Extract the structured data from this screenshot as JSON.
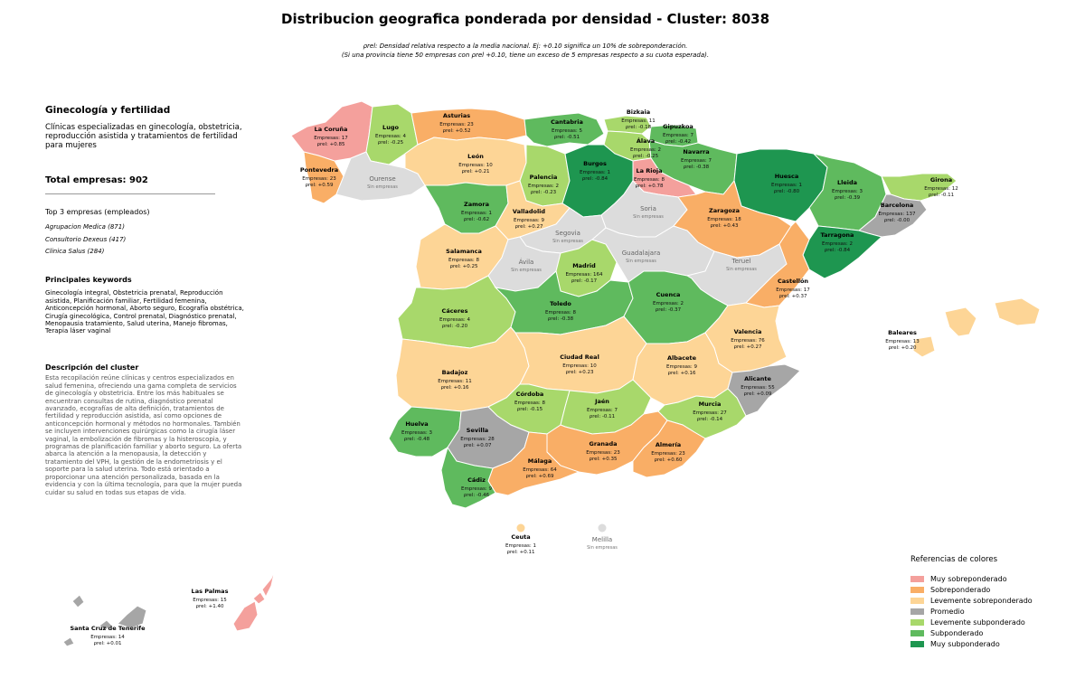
{
  "title": "Distribucion geografica ponderada por densidad - Cluster: 8038",
  "subtitle_line1": "ρrel: Densidad relativa respecto a la media nacional. Ej: +0.10 significa un 10% de sobreponderación.",
  "subtitle_line2": "(Si una provincia tiene 50 empresas con ρrel +0.10, tiene un exceso de 5 empresas respecto a su cuota esperada).",
  "sidebar": {
    "heading": "Ginecología y fertilidad",
    "description": "Clínicas especializadas en ginecología, obstetricia, reproducción asistida y tratamientos de fertilidad para mujeres",
    "total": "Total empresas: 902",
    "top_title": "Top 3 empresas (empleados)",
    "top": [
      "Agrupacion Medica (871)",
      "Consultorio Dexeus (417)",
      "Clinica Salus (284)"
    ],
    "keywords_title": "Principales keywords",
    "keywords": "Ginecología integral, Obstetricia prenatal, Reproducción asistida, Planificación familiar, Fertilidad femenina, Anticoncepción hormonal, Aborto seguro, Ecografía obstétrica, Cirugía ginecológica, Control prenatal, Diagnóstico prenatal, Menopausia tratamiento, Salud uterina, Manejo fibromas, Terapia láser vaginal",
    "desc_title": "Descripción del cluster",
    "desc": "Esta recopilación reúne clínicas y centros especializados en salud femenina, ofreciendo una gama completa de servicios de ginecología y obstetricia. Entre los más habituales se encuentran consultas de rutina, diagnóstico prenatal avanzado, ecografías de alta definición, tratamientos de fertilidad y reproducción asistida, así como opciones de anticoncepción hormonal y métodos no hormonales. También se incluyen intervenciones quirúrgicas como la cirugía láser vaginal, la embolización de fibromas y la histeroscopia, y programas de planificación familiar y aborto seguro. La oferta abarca la atención a la menopausia, la detección y tratamiento del VPH, la gestión de la endometriosis y el soporte para la salud uterina. Todo está orientado a proporcionar una atención personalizada, basada en la evidencia y con la última tecnología, para que la mujer pueda cuidar su salud en todas sus etapas de vida."
  },
  "colors": {
    "muy_sobre": "#F4A09C",
    "sobre": "#F9AE66",
    "lev_sobre": "#FDD596",
    "promedio": "#A6A6A6",
    "lev_sub": "#A8D86B",
    "sub": "#5FBA5E",
    "muy_sub": "#1E9650",
    "sin": "#DCDCDC"
  },
  "legend": {
    "title": "Referencias de colores",
    "items": [
      {
        "label": "Muy sobreponderado",
        "color": "#F4A09C"
      },
      {
        "label": "Sobreponderado",
        "color": "#F9AE66"
      },
      {
        "label": "Levemente sobreponderado",
        "color": "#FDD596"
      },
      {
        "label": "Promedio",
        "color": "#A6A6A6"
      },
      {
        "label": "Levemente subponderado",
        "color": "#A8D86B"
      },
      {
        "label": "Subponderado",
        "color": "#5FBA5E"
      },
      {
        "label": "Muy subponderado",
        "color": "#1E9650"
      }
    ]
  },
  "empresas_prefix": "Empresas: ",
  "rho_prefix": "ρrel: ",
  "sin_empresas": "Sin empresas",
  "provinces": [
    {
      "name": "La Coruña",
      "cat": "muy_sobre",
      "empresas": 17,
      "rho": "+0.85"
    },
    {
      "name": "Lugo",
      "cat": "lev_sub",
      "empresas": 4,
      "rho": "-0.25"
    },
    {
      "name": "Asturias",
      "cat": "sobre",
      "empresas": 23,
      "rho": "+0.52"
    },
    {
      "name": "Cantabria",
      "cat": "sub",
      "empresas": 5,
      "rho": "-0.51"
    },
    {
      "name": "Bizkaia",
      "cat": "lev_sub",
      "empresas": 11,
      "rho": "-0.18"
    },
    {
      "name": "Gipuzkoa",
      "cat": "sub",
      "empresas": 7,
      "rho": "-0.42"
    },
    {
      "name": "Álava",
      "cat": "lev_sub",
      "empresas": 2,
      "rho": "-0.25"
    },
    {
      "name": "Navarra",
      "cat": "sub",
      "empresas": 7,
      "rho": "-0.38"
    },
    {
      "name": "Pontevedra",
      "cat": "sobre",
      "empresas": 23,
      "rho": "+0.59"
    },
    {
      "name": "Ourense",
      "cat": "sin"
    },
    {
      "name": "León",
      "cat": "lev_sobre",
      "empresas": 10,
      "rho": "+0.21"
    },
    {
      "name": "Palencia",
      "cat": "lev_sub",
      "empresas": 2,
      "rho": "-0.23"
    },
    {
      "name": "Burgos",
      "cat": "muy_sub",
      "empresas": 1,
      "rho": "-0.84"
    },
    {
      "name": "La Rioja",
      "cat": "muy_sobre",
      "empresas": 8,
      "rho": "+0.78"
    },
    {
      "name": "Huesca",
      "cat": "muy_sub",
      "empresas": 1,
      "rho": "-0.80"
    },
    {
      "name": "Lleida",
      "cat": "sub",
      "empresas": 3,
      "rho": "-0.39"
    },
    {
      "name": "Girona",
      "cat": "lev_sub",
      "empresas": 12,
      "rho": "-0.11"
    },
    {
      "name": "Barcelona",
      "cat": "promedio",
      "empresas": 137,
      "rho": "-0.00"
    },
    {
      "name": "Zamora",
      "cat": "sub",
      "empresas": 1,
      "rho": "-0.62"
    },
    {
      "name": "Valladolid",
      "cat": "lev_sobre",
      "empresas": 9,
      "rho": "+0.27"
    },
    {
      "name": "Soria",
      "cat": "sin"
    },
    {
      "name": "Zaragoza",
      "cat": "sobre",
      "empresas": 18,
      "rho": "+0.43"
    },
    {
      "name": "Tarragona",
      "cat": "muy_sub",
      "empresas": 2,
      "rho": "-0.84"
    },
    {
      "name": "Segovia",
      "cat": "sin"
    },
    {
      "name": "Salamanca",
      "cat": "lev_sobre",
      "empresas": 8,
      "rho": "+0.25"
    },
    {
      "name": "Ávila",
      "cat": "sin"
    },
    {
      "name": "Madrid",
      "cat": "lev_sub",
      "empresas": 164,
      "rho": "-0.17"
    },
    {
      "name": "Guadalajara",
      "cat": "sin"
    },
    {
      "name": "Teruel",
      "cat": "sin"
    },
    {
      "name": "Castellón",
      "cat": "sobre",
      "empresas": 17,
      "rho": "+0.37"
    },
    {
      "name": "Cáceres",
      "cat": "lev_sub",
      "empresas": 4,
      "rho": "-0.20"
    },
    {
      "name": "Toledo",
      "cat": "sub",
      "empresas": 8,
      "rho": "-0.38"
    },
    {
      "name": "Cuenca",
      "cat": "sub",
      "empresas": 2,
      "rho": "-0.37"
    },
    {
      "name": "Valencia",
      "cat": "lev_sobre",
      "empresas": 76,
      "rho": "+0.27"
    },
    {
      "name": "Baleares",
      "cat": "lev_sobre",
      "empresas": 13,
      "rho": "+0.20"
    },
    {
      "name": "Badajoz",
      "cat": "lev_sobre",
      "empresas": 11,
      "rho": "+0.16"
    },
    {
      "name": "Ciudad Real",
      "cat": "lev_sobre",
      "empresas": 10,
      "rho": "+0.23"
    },
    {
      "name": "Albacete",
      "cat": "lev_sobre",
      "empresas": 9,
      "rho": "+0.16"
    },
    {
      "name": "Alicante",
      "cat": "promedio",
      "empresas": 55,
      "rho": "+0.09"
    },
    {
      "name": "Córdoba",
      "cat": "lev_sub",
      "empresas": 8,
      "rho": "-0.15"
    },
    {
      "name": "Jaén",
      "cat": "lev_sub",
      "empresas": 7,
      "rho": "-0.11"
    },
    {
      "name": "Murcia",
      "cat": "lev_sub",
      "empresas": 27,
      "rho": "-0.14"
    },
    {
      "name": "Huelva",
      "cat": "sub",
      "empresas": 3,
      "rho": "-0.48"
    },
    {
      "name": "Sevilla",
      "cat": "promedio",
      "empresas": 28,
      "rho": "+0.07"
    },
    {
      "name": "Granada",
      "cat": "sobre",
      "empresas": 23,
      "rho": "+0.35"
    },
    {
      "name": "Almería",
      "cat": "sobre",
      "empresas": 23,
      "rho": "+0.60"
    },
    {
      "name": "Málaga",
      "cat": "sobre",
      "empresas": 64,
      "rho": "+0.69"
    },
    {
      "name": "Cádiz",
      "cat": "sub",
      "empresas": 9,
      "rho": "-0.46"
    },
    {
      "name": "Ceuta",
      "cat": "lev_sobre",
      "empresas": 1,
      "rho": "+0.11"
    },
    {
      "name": "Melilla",
      "cat": "sin"
    },
    {
      "name": "Las Palmas",
      "cat": "muy_sobre",
      "empresas": 15,
      "rho": "+1.40"
    },
    {
      "name": "Santa Cruz de Tenerife",
      "cat": "promedio",
      "empresas": 14,
      "rho": "+0.01"
    }
  ]
}
